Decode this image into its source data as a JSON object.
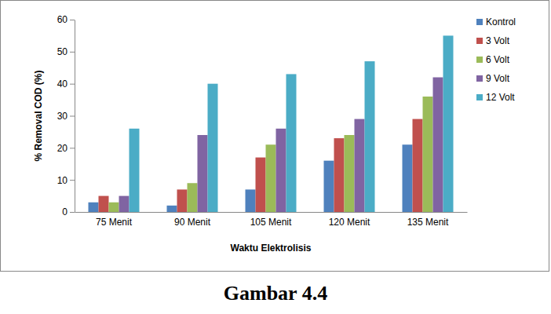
{
  "chart_data": {
    "type": "bar",
    "title": "Gambar 4.4",
    "x_label": "Waktu Elektrolisis",
    "y_label": "% Removal COD (%)",
    "categories": [
      "75 Menit",
      "90 Menit",
      "105 Menit",
      "120 Menit",
      "135 Menit"
    ],
    "series": [
      {
        "name": "Kontrol",
        "color": "#4f81bd",
        "values": [
          3,
          2,
          7,
          16,
          21
        ]
      },
      {
        "name": "3 Volt",
        "color": "#c0504d",
        "values": [
          5,
          7,
          17,
          23,
          29
        ]
      },
      {
        "name": "6 Volt",
        "color": "#9bbb59",
        "values": [
          3,
          9,
          21,
          24,
          36
        ]
      },
      {
        "name": "9 Volt",
        "color": "#8064a2",
        "values": [
          5,
          24,
          26,
          29,
          42
        ]
      },
      {
        "name": "12 Volt",
        "color": "#4bacc6",
        "values": [
          26,
          40,
          43,
          47,
          55
        ]
      }
    ],
    "ylim": [
      0,
      60
    ],
    "yticks": [
      0,
      10,
      20,
      30,
      40,
      50,
      60
    ],
    "grid": false,
    "legend": "right"
  }
}
